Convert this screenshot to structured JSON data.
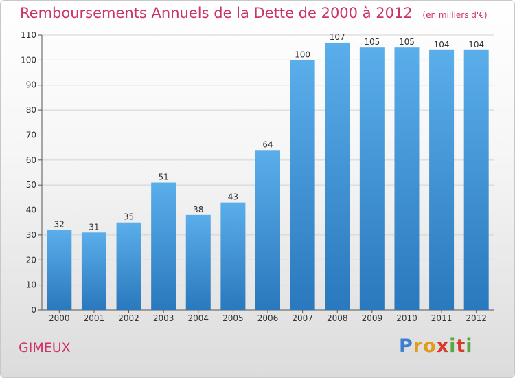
{
  "chart_data": {
    "type": "bar",
    "title": "Remboursements Annuels de la Dette de 2000 à 2012",
    "subtitle": "(en milliers d'€)",
    "categories": [
      "2000",
      "2001",
      "2002",
      "2003",
      "2004",
      "2005",
      "2006",
      "2007",
      "2008",
      "2009",
      "2010",
      "2011",
      "2012"
    ],
    "values": [
      32,
      31,
      35,
      51,
      38,
      43,
      64,
      100,
      107,
      105,
      105,
      104,
      104
    ],
    "ylim": [
      0,
      110
    ],
    "yticks": [
      0,
      10,
      20,
      30,
      40,
      50,
      60,
      70,
      80,
      90,
      100,
      110
    ],
    "grid": true,
    "bar_color": "#3d8fd6"
  },
  "city": "GIMEUX",
  "brand": {
    "name": "Proxiti",
    "letters": [
      "P",
      "r",
      "o",
      "x",
      "i",
      "t",
      "i"
    ],
    "colors": [
      "#3a7fd0",
      "#e39a1b",
      "#e39a1b",
      "#d63a2a",
      "#5aa642",
      "#d63a2a",
      "#5aa642"
    ]
  }
}
